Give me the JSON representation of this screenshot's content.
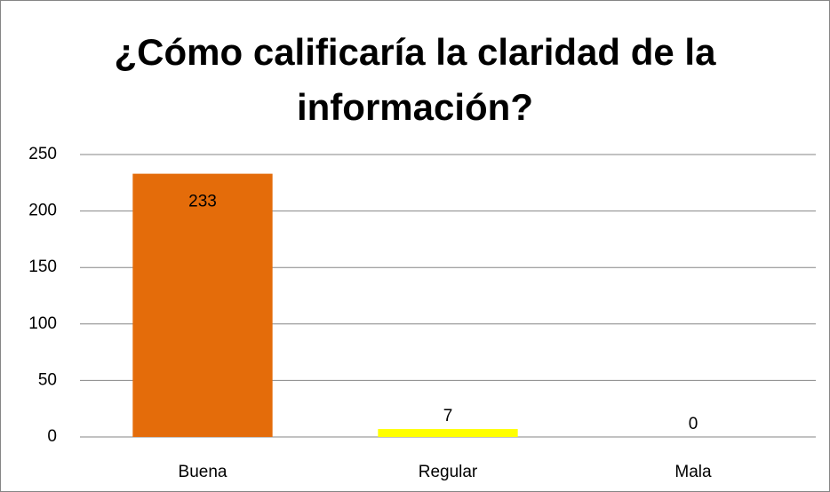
{
  "chart_data": {
    "type": "bar",
    "title": "¿Cómo calificaría la claridad de la información?",
    "categories": [
      "Buena",
      "Regular",
      "Mala"
    ],
    "values": [
      233,
      7,
      0
    ],
    "colors": [
      "#e46c0a",
      "#ffff00",
      "#e46c0a"
    ],
    "ylim": [
      0,
      250
    ],
    "yticks": [
      0,
      50,
      100,
      150,
      200,
      250
    ],
    "grid": true
  }
}
